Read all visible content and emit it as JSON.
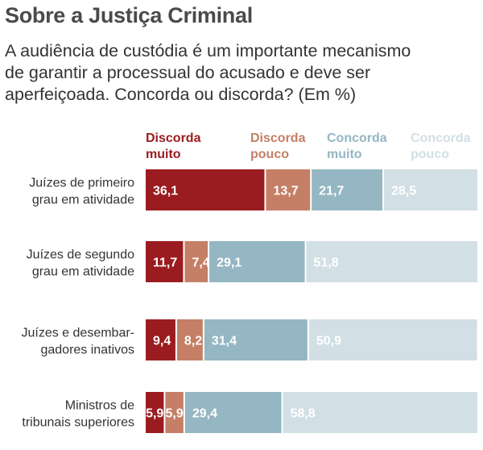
{
  "header": {
    "title": "Sobre a Justiça Criminal",
    "subtitle_lines": [
      "A audiência de custódia é um importante mecanismo",
      "de garantir a processual do acusado e deve ser",
      "aperfeiçoada. Concorda ou discorda? (Em %)"
    ]
  },
  "chart_data": {
    "type": "bar",
    "orientation": "horizontal",
    "stacked": true,
    "percent_scale": true,
    "title": "Sobre a Justiça Criminal",
    "subtitle": "A audiência de custódia é um importante mecanismo de garantir a processual do acusado e deve ser aperfeiçoada. Concorda ou discorda? (Em %)",
    "xlabel": "",
    "ylabel": "",
    "xlim": [
      0,
      100
    ],
    "grid": false,
    "legend_position": "top",
    "categories": [
      [
        "Juízes de primeiro",
        "grau em atividade"
      ],
      [
        "Juízes de segundo",
        "grau em atividade"
      ],
      [
        "Juízes e desembar-",
        "gadores inativos"
      ],
      [
        "Ministros de",
        "tribunais superiores"
      ]
    ],
    "series": [
      {
        "name": [
          "Discorda",
          "muito"
        ],
        "color": "#9b1c20",
        "values": [
          36.1,
          11.7,
          9.4,
          5.9
        ],
        "labels": [
          "36,1",
          "11,7",
          "9,4",
          "5,9"
        ]
      },
      {
        "name": [
          "Discorda",
          "pouco"
        ],
        "color": "#c47f66",
        "values": [
          13.7,
          7.4,
          8.2,
          5.9
        ],
        "labels": [
          "13,7",
          "7,4",
          "8,2",
          "5,9"
        ]
      },
      {
        "name": [
          "Concorda",
          "muito"
        ],
        "color": "#95b6c3",
        "values": [
          21.7,
          29.1,
          31.4,
          29.4
        ],
        "labels": [
          "21,7",
          "29,1",
          "31,4",
          "29,4"
        ]
      },
      {
        "name": [
          "Concorda",
          "pouco"
        ],
        "color": "#d2dfe5",
        "values": [
          28.5,
          51.8,
          50.9,
          58.8
        ],
        "labels": [
          "28,5",
          "51,8",
          "50,9",
          "58,8"
        ]
      }
    ]
  }
}
